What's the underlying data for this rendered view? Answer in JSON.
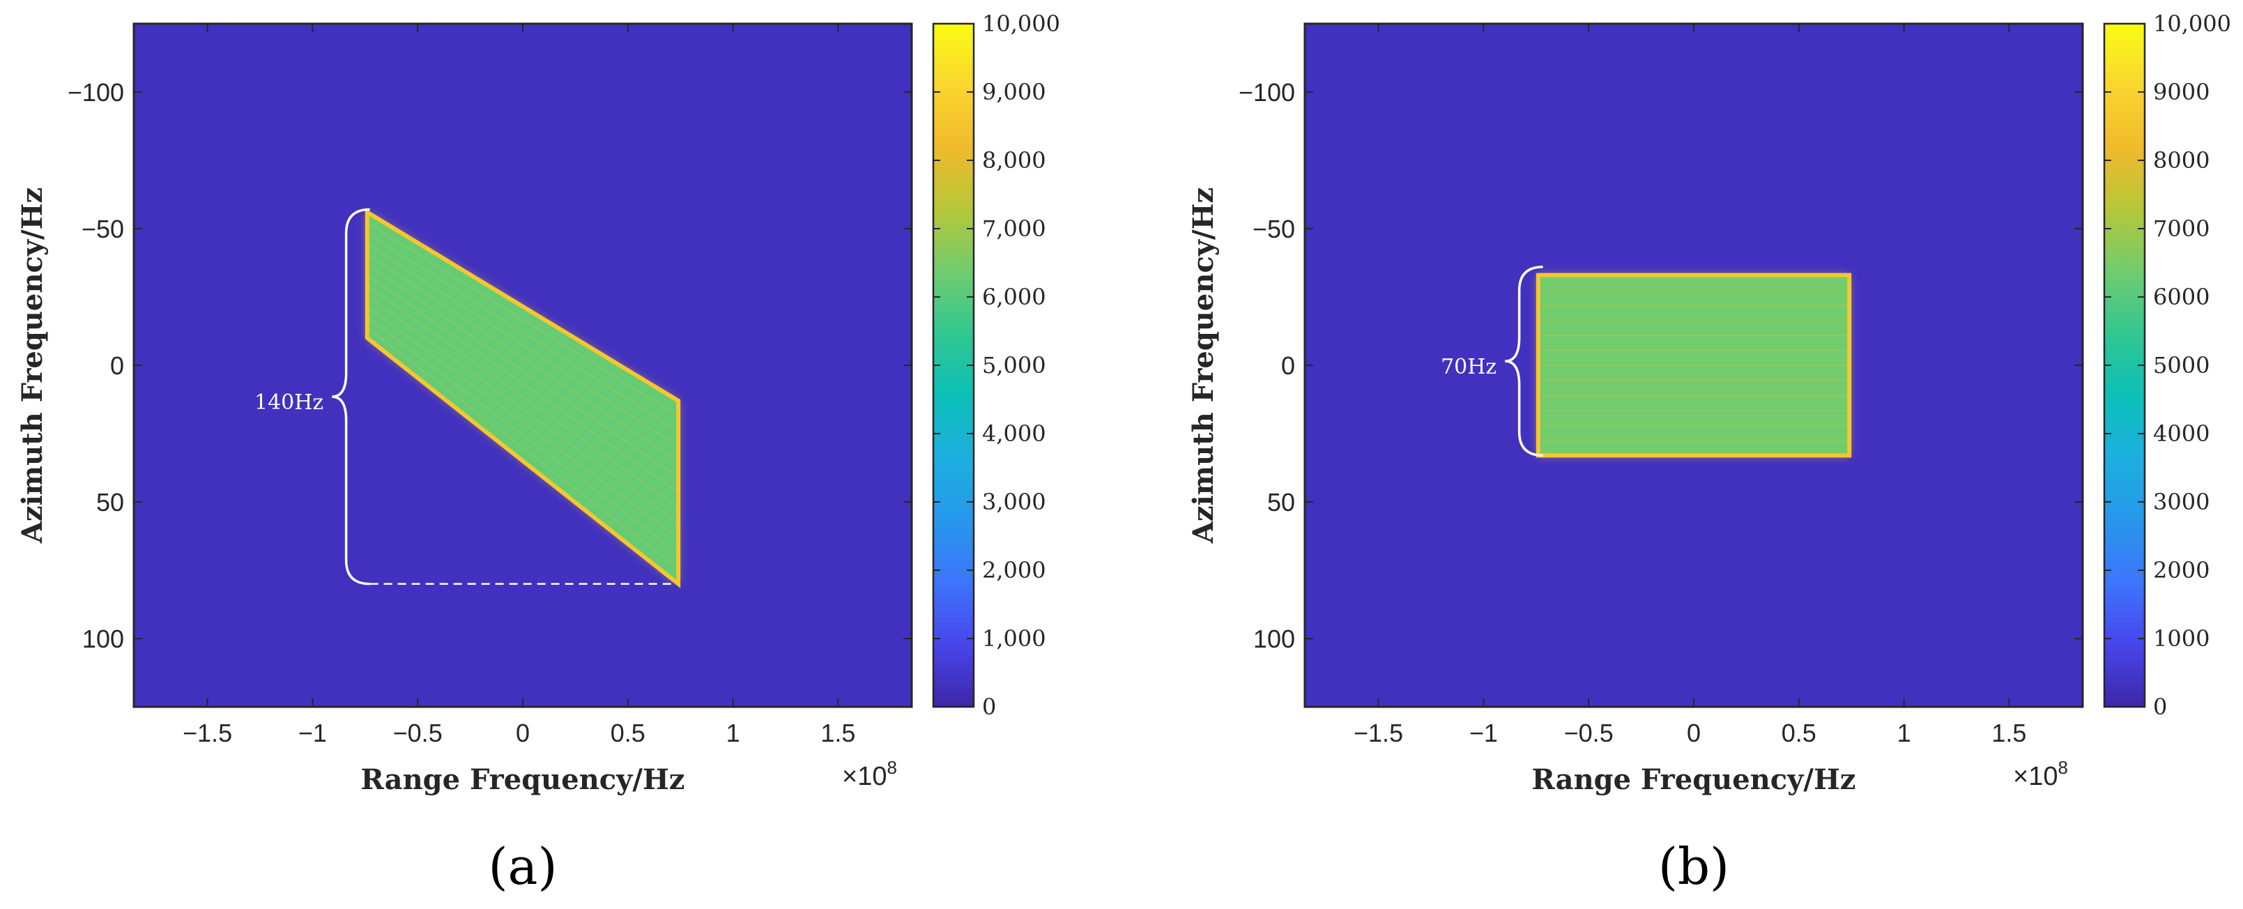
{
  "chart_data": [
    {
      "type": "heatmap",
      "panel_label": "(a)",
      "xlabel": "Range Frequency/Hz",
      "ylabel": "Azimuth Frequency/Hz",
      "x_multiplier": "×10",
      "x_multiplier_exp": "8",
      "xlim": [
        -1.85,
        1.85
      ],
      "ylim": [
        -125,
        125
      ],
      "y_reversed": true,
      "xticks": [
        -1.5,
        -1,
        -0.5,
        0,
        0.5,
        1,
        1.5
      ],
      "xtick_labels": [
        "−1.5",
        "−1",
        "−0.5",
        "0",
        "0.5",
        "1",
        "1.5"
      ],
      "yticks": [
        -100,
        -50,
        0,
        50,
        100
      ],
      "ytick_labels": [
        "−100",
        "−50",
        "0",
        "50",
        "100"
      ],
      "region_shape": "parallelogram",
      "region_corners": [
        [
          -0.74,
          -56
        ],
        [
          -0.74,
          -10
        ],
        [
          0.74,
          80
        ],
        [
          0.74,
          13
        ]
      ],
      "region_value": 6200,
      "edge_value": 8600,
      "background_value": 300,
      "colorbar": {
        "min": 0,
        "max": 10000,
        "ticks": [
          0,
          1000,
          2000,
          3000,
          4000,
          5000,
          6000,
          7000,
          8000,
          9000,
          10000
        ],
        "tick_labels": [
          "0",
          "1,000",
          "2,000",
          "3,000",
          "4,000",
          "5,000",
          "6,000",
          "7,000",
          "8,000",
          "9,000",
          "10,000"
        ]
      },
      "annotation": {
        "label": "140Hz",
        "y_from": -57,
        "y_to": 80
      }
    },
    {
      "type": "heatmap",
      "panel_label": "(b)",
      "xlabel": "Range Frequency/Hz",
      "ylabel": "Azimuth Frequency/Hz",
      "x_multiplier": "×10",
      "x_multiplier_exp": "8",
      "xlim": [
        -1.85,
        1.85
      ],
      "ylim": [
        -125,
        125
      ],
      "y_reversed": true,
      "xticks": [
        -1.5,
        -1,
        -0.5,
        0,
        0.5,
        1,
        1.5
      ],
      "xtick_labels": [
        "−1.5",
        "−1",
        "−0.5",
        "0",
        "0.5",
        "1",
        "1.5"
      ],
      "yticks": [
        -100,
        -50,
        0,
        50,
        100
      ],
      "ytick_labels": [
        "−100",
        "−50",
        "0",
        "50",
        "100"
      ],
      "region_shape": "rectangle",
      "region_corners": [
        [
          -0.74,
          -33
        ],
        [
          0.74,
          -33
        ],
        [
          0.74,
          33
        ],
        [
          -0.74,
          33
        ]
      ],
      "region_value": 6400,
      "edge_value": 8600,
      "background_value": 300,
      "colorbar": {
        "min": 0,
        "max": 10000,
        "ticks": [
          0,
          1000,
          2000,
          3000,
          4000,
          5000,
          6000,
          7000,
          8000,
          9000,
          10000
        ],
        "tick_labels": [
          "0",
          "1000",
          "2000",
          "3000",
          "4000",
          "5000",
          "6000",
          "7000",
          "8000",
          "9000",
          "10,000"
        ]
      },
      "annotation": {
        "label": "70Hz",
        "y_from": -36,
        "y_to": 33
      }
    }
  ],
  "colormap": [
    "#3e26a8",
    "#4746eb",
    "#3e75fd",
    "#2797eb",
    "#1cafdf",
    "#0cbfb9",
    "#31c791",
    "#70cc6f",
    "#b5c739",
    "#f0bb2b",
    "#fad62e",
    "#f9fb15"
  ]
}
